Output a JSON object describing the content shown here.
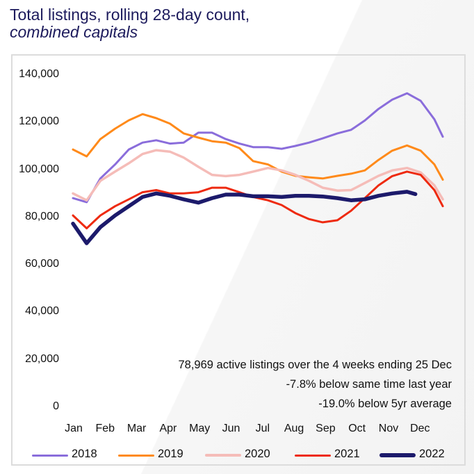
{
  "chart_data": {
    "type": "line",
    "title": "Total listings, rolling 28-day count,",
    "subtitle": "combined capitals",
    "xlabel": "",
    "ylabel": "",
    "x_tick_labels": [
      "Jan",
      "Feb",
      "Mar",
      "Apr",
      "May",
      "Jun",
      "Jul",
      "Aug",
      "Sep",
      "Oct",
      "Nov",
      "Dec"
    ],
    "y_tick_labels": [
      "140,000",
      "120,000",
      "100,000",
      "80,000",
      "60,000",
      "40,000",
      "20,000",
      "0"
    ],
    "y_ticks": [
      140000,
      120000,
      100000,
      80000,
      60000,
      40000,
      20000,
      0
    ],
    "ylim": [
      0,
      140000
    ],
    "grid": false,
    "legend_position": "bottom",
    "x": [
      "01-14",
      "01-27",
      "02-09",
      "02-23",
      "03-08",
      "03-21",
      "04-03",
      "04-16",
      "04-29",
      "05-13",
      "05-26",
      "06-08",
      "06-21",
      "07-04",
      "07-18",
      "07-31",
      "08-13",
      "08-26",
      "09-08",
      "09-22",
      "10-05",
      "10-18",
      "10-31",
      "11-13",
      "11-27",
      "12-10",
      "12-23",
      "12-31"
    ],
    "series": [
      {
        "name": "2018",
        "color": "#8a6ddb",
        "values": [
          88400,
          86700,
          96700,
          102600,
          108900,
          111800,
          112800,
          111400,
          111800,
          116000,
          116000,
          113300,
          111400,
          109900,
          109900,
          109200,
          110400,
          111800,
          113600,
          115700,
          117200,
          121100,
          126000,
          129900,
          132600,
          129400,
          121600,
          114300
        ]
      },
      {
        "name": "2019",
        "color": "#ff8a1a",
        "values": [
          108900,
          106000,
          113300,
          117700,
          121200,
          123800,
          122100,
          119800,
          115700,
          113900,
          112400,
          111800,
          109500,
          104000,
          102600,
          99600,
          97800,
          97200,
          96700,
          97800,
          98700,
          100100,
          104500,
          108400,
          110600,
          108400,
          102600,
          96200
        ]
      },
      {
        "name": "2020",
        "color": "#f5bcb8",
        "values": [
          90400,
          87500,
          95700,
          99600,
          103100,
          107000,
          108600,
          108000,
          105500,
          101600,
          98200,
          97700,
          98200,
          99600,
          101100,
          100100,
          98200,
          95700,
          92800,
          91600,
          91800,
          94800,
          97800,
          100100,
          101100,
          99200,
          93800,
          87900
        ]
      },
      {
        "name": "2021",
        "color": "#ee2a10",
        "values": [
          81100,
          75700,
          81100,
          85000,
          87900,
          90900,
          91800,
          90400,
          90400,
          90900,
          92800,
          92800,
          90900,
          88900,
          87500,
          85500,
          82100,
          79600,
          78200,
          79100,
          83100,
          88400,
          93800,
          97700,
          99600,
          98200,
          91800,
          85000
        ]
      },
      {
        "name": "2022",
        "color": "#1c1a6b",
        "x": [
          "01-14",
          "01-27",
          "02-09",
          "02-23",
          "03-08",
          "03-21",
          "04-03",
          "04-16",
          "04-29",
          "05-13",
          "05-26",
          "06-08",
          "06-21",
          "07-04",
          "07-18",
          "07-31",
          "08-13",
          "08-26",
          "09-08",
          "09-22",
          "10-05",
          "10-18",
          "10-31",
          "11-13",
          "11-27",
          "12-05"
        ],
        "values": [
          77700,
          69400,
          76200,
          81100,
          85000,
          88900,
          90400,
          89400,
          87900,
          86500,
          88400,
          89900,
          89900,
          89200,
          89200,
          88900,
          89400,
          89400,
          89100,
          88400,
          87500,
          87900,
          89400,
          90400,
          91100,
          90100
        ]
      }
    ],
    "annotations": [
      "78,969 active listings over the 4 weeks ending 25 Dec",
      "-7.8% below same time last year",
      "-19.0% below 5yr average"
    ]
  }
}
